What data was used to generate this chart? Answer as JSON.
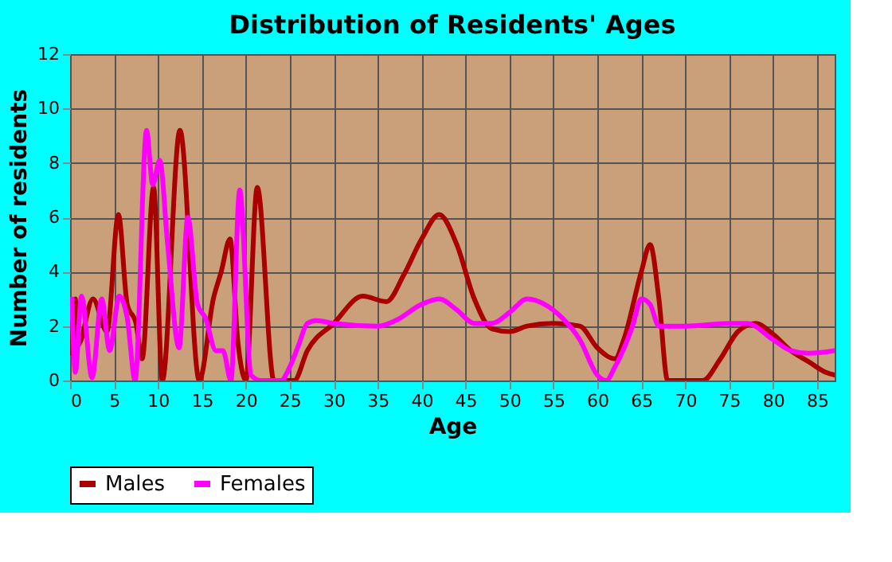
{
  "chart_data": {
    "type": "line",
    "title": "Distribution of Residents' Ages",
    "xlabel": "Age",
    "ylabel": "Number of residents",
    "xlim": [
      0,
      87
    ],
    "xticks": [
      0,
      5,
      10,
      15,
      20,
      25,
      30,
      35,
      40,
      45,
      50,
      55,
      60,
      65,
      70,
      75,
      80,
      85
    ],
    "ylim": [
      0,
      12
    ],
    "yticks": [
      0,
      2,
      4,
      6,
      8,
      10,
      12
    ],
    "grid": true,
    "legend": "bottom",
    "line_style": "solid",
    "marker": "none",
    "series": [
      {
        "name": "Males",
        "color": "#aa0000",
        "x": [
          0,
          0.6,
          0.9,
          2.6,
          4.2,
          5.5,
          6.5,
          7.5,
          8.2,
          9.5,
          10.5,
          12.5,
          14.7,
          16.3,
          17.2,
          18.2,
          19.1,
          20,
          21.3,
          23.2,
          25.5,
          27,
          30,
          33.3,
          36,
          38,
          40,
          42,
          44,
          46,
          48,
          50,
          52,
          55,
          58,
          60,
          62,
          63,
          65,
          66,
          67,
          68,
          70,
          72,
          74,
          76,
          78,
          80,
          82,
          84,
          86,
          87
        ],
        "values": [
          1.0,
          3.0,
          1.3,
          3.0,
          1.8,
          6.1,
          2.8,
          2.1,
          0.8,
          7.1,
          0,
          9.2,
          0,
          3.0,
          4.0,
          5.2,
          1.4,
          0,
          7.1,
          0,
          0,
          1.1,
          2.1,
          3.1,
          2.9,
          3.9,
          5.2,
          6.1,
          5.0,
          3.0,
          1.9,
          1.8,
          2.0,
          2.1,
          2.0,
          1.2,
          0.8,
          1.5,
          4.0,
          5.0,
          3.0,
          0,
          0,
          0,
          0.8,
          1.8,
          2.1,
          1.7,
          1.1,
          0.7,
          0.3,
          0.2
        ]
      },
      {
        "name": "Females",
        "color": "#ff00ff",
        "x": [
          0.2,
          0.6,
          1.3,
          2.5,
          3.6,
          4.5,
          5.6,
          6.5,
          7.4,
          8.7,
          9.4,
          10.2,
          11.1,
          12.4,
          13.4,
          14.5,
          15.4,
          16.6,
          17.4,
          18.3,
          19.3,
          20.6,
          21.7,
          24,
          25,
          26,
          27,
          28,
          30,
          35,
          37,
          40,
          42,
          44,
          46,
          48,
          50,
          52,
          54,
          56,
          58,
          60,
          61,
          62,
          64,
          65,
          66,
          67,
          70,
          75,
          77,
          80,
          82,
          84,
          87
        ],
        "values": [
          3.0,
          0.3,
          3.1,
          0.1,
          3.0,
          1.1,
          3.1,
          2.3,
          0,
          9.2,
          7.2,
          8.1,
          5.0,
          1.2,
          6.0,
          2.8,
          2.3,
          1.1,
          1.1,
          0,
          7.0,
          0.2,
          0,
          0,
          0.5,
          1.3,
          2.1,
          2.2,
          2.1,
          2.0,
          2.2,
          2.8,
          3.0,
          2.6,
          2.1,
          2.1,
          2.5,
          3.0,
          2.8,
          2.3,
          1.5,
          0.2,
          0,
          0.5,
          2.0,
          3.0,
          2.8,
          2.0,
          2.0,
          2.1,
          2.1,
          1.5,
          1.1,
          1.0,
          1.1
        ]
      }
    ]
  }
}
